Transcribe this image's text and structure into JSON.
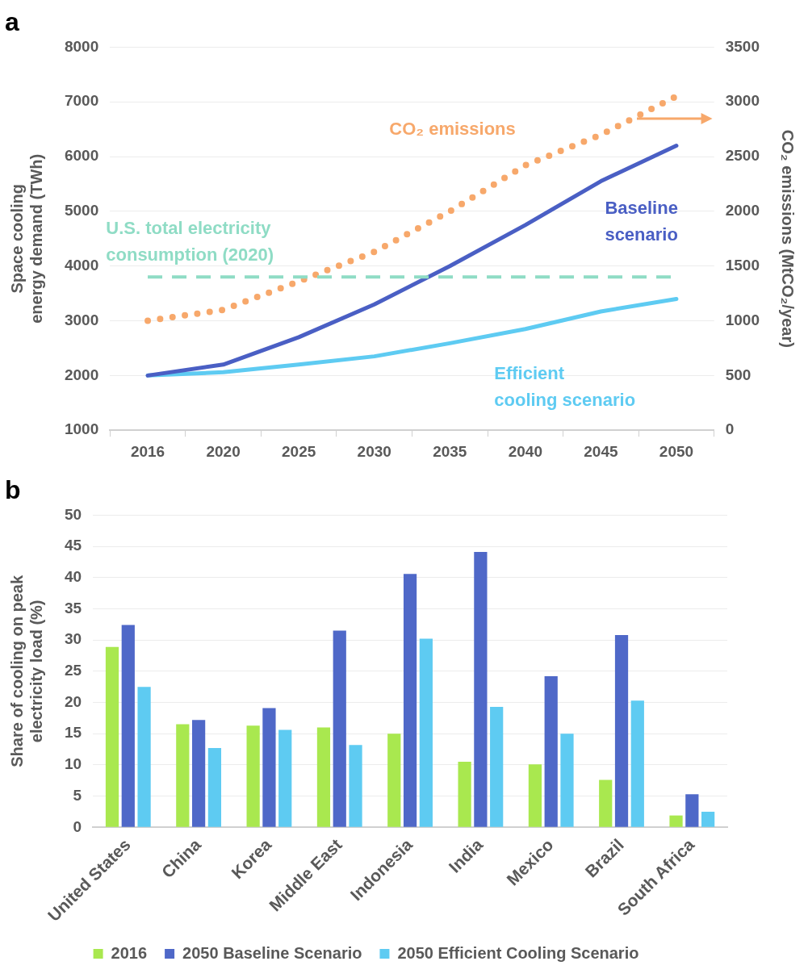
{
  "chart_data": [
    {
      "type": "line",
      "title": "a",
      "ylabel": "Space cooling energy demand (TWh)",
      "y2label": "CO₂ emissions (MtCO₂/year)",
      "categories": [
        "2016",
        "2020",
        "2025",
        "2030",
        "2035",
        "2040",
        "2045",
        "2050"
      ],
      "series": [
        {
          "name": "Baseline scenario",
          "color": "#4a5fc4",
          "values": [
            2000,
            2200,
            2700,
            3300,
            4000,
            4750,
            5550,
            6200
          ]
        },
        {
          "name": "Efficient cooling scenario",
          "color": "#5ecbf2",
          "values": [
            2000,
            2060,
            2200,
            2350,
            2590,
            2850,
            3170,
            3400
          ]
        },
        {
          "name": "CO₂ emissions",
          "color": "#f7a86b",
          "axis": "y2",
          "line_style": "dotted",
          "values": [
            1000,
            1100,
            1360,
            1630,
            2000,
            2420,
            2700,
            3050
          ]
        }
      ],
      "ylim": [
        1000,
        8000
      ],
      "yticks": [
        1000,
        2000,
        3000,
        4000,
        5000,
        6000,
        7000,
        8000
      ],
      "y2lim": [
        0,
        3500
      ],
      "y2ticks": [
        0,
        500,
        1000,
        1500,
        2000,
        2500,
        3000,
        3500
      ],
      "ref_lines": [
        {
          "axis": "y",
          "value": 3800,
          "label": "U.S. total electricity consumption (2020)",
          "color": "#8fdcc5",
          "line_style": "dashed"
        }
      ],
      "grid": "y",
      "legend": false,
      "marker": "none"
    },
    {
      "type": "bar",
      "title": "b",
      "ylabel": "Share of cooling on peak electricity load (%)",
      "categories": [
        "United States",
        "China",
        "Korea",
        "Middle East",
        "Indonesia",
        "India",
        "Mexico",
        "Brazil",
        "South Africa"
      ],
      "series": [
        {
          "name": "2016",
          "color": "#a9e84f",
          "values": [
            28.9,
            16.5,
            16.3,
            16.0,
            15.0,
            10.5,
            10.1,
            7.6,
            1.9
          ]
        },
        {
          "name": "2050 Baseline Scenario",
          "color": "#4f68c8",
          "values": [
            32.4,
            17.2,
            19.1,
            31.5,
            40.6,
            44.1,
            24.2,
            30.8,
            5.3
          ]
        },
        {
          "name": "2050 Efficient Cooling Scenario",
          "color": "#5ecbf2",
          "values": [
            22.5,
            12.7,
            15.6,
            13.2,
            30.2,
            19.3,
            15.0,
            20.3,
            2.5
          ]
        }
      ],
      "ylim": [
        0,
        50
      ],
      "yticks": [
        0,
        5,
        10,
        15,
        20,
        25,
        30,
        35,
        40,
        45,
        50
      ],
      "grid": "y",
      "legend": "bottom"
    }
  ]
}
